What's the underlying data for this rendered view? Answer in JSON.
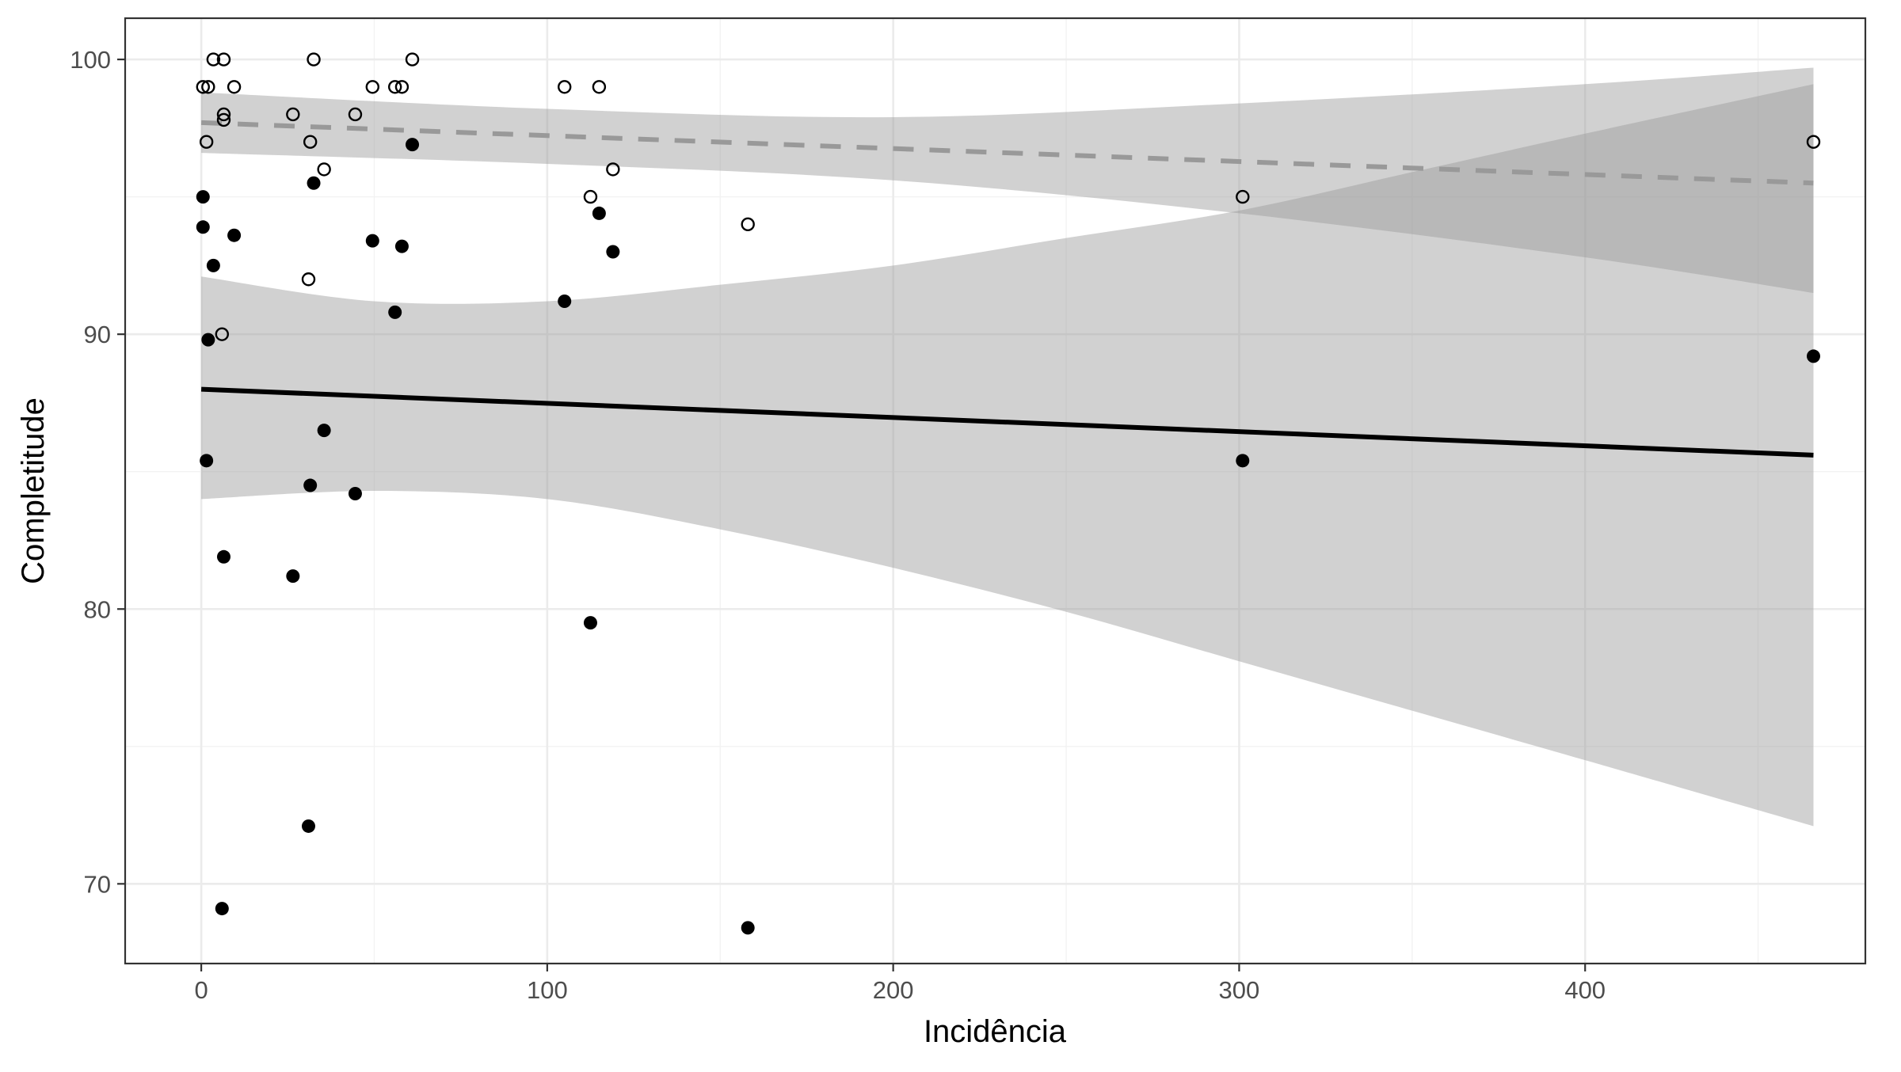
{
  "chart_data": {
    "type": "scatter",
    "title": "",
    "xlabel": "Incidência",
    "ylabel": "Completitude",
    "xlim": [
      -22,
      481
    ],
    "ylim": [
      67.1,
      101.5
    ],
    "x_ticks": [
      0,
      100,
      200,
      300,
      400
    ],
    "x_tick_labels": [
      "0",
      "100",
      "200",
      "300",
      "400"
    ],
    "y_ticks": [
      70,
      80,
      90,
      100
    ],
    "y_tick_labels": [
      "70",
      "80",
      "90",
      "100"
    ],
    "grid": true,
    "legend": "none",
    "colors": {
      "panel_border": "#333333",
      "grid_major": "#ebebeb",
      "grid_minor": "#f2f2f2",
      "ribbon": "#999999",
      "filled_points": "#000000",
      "open_points": "#000000",
      "solid_line": "#000000",
      "dashed_line": "#999999"
    },
    "series": [
      {
        "marker": "filled-circle",
        "fit": "solid",
        "points": [
          {
            "x": 0.5,
            "y": 95.0
          },
          {
            "x": 0.5,
            "y": 93.9
          },
          {
            "x": 1.5,
            "y": 85.4
          },
          {
            "x": 2,
            "y": 89.8
          },
          {
            "x": 3.5,
            "y": 92.5
          },
          {
            "x": 6,
            "y": 69.1
          },
          {
            "x": 6.5,
            "y": 81.9
          },
          {
            "x": 9.5,
            "y": 93.6
          },
          {
            "x": 26.5,
            "y": 81.2
          },
          {
            "x": 31,
            "y": 72.1
          },
          {
            "x": 31.5,
            "y": 84.5
          },
          {
            "x": 32.5,
            "y": 95.5
          },
          {
            "x": 35.5,
            "y": 86.5
          },
          {
            "x": 44.5,
            "y": 84.2
          },
          {
            "x": 49.5,
            "y": 93.4
          },
          {
            "x": 56,
            "y": 90.8
          },
          {
            "x": 58,
            "y": 93.2
          },
          {
            "x": 61,
            "y": 96.9
          },
          {
            "x": 105,
            "y": 91.2
          },
          {
            "x": 112.5,
            "y": 79.5
          },
          {
            "x": 115,
            "y": 94.4
          },
          {
            "x": 119,
            "y": 93.0
          },
          {
            "x": 158,
            "y": 68.4
          },
          {
            "x": 301,
            "y": 85.4
          },
          {
            "x": 466,
            "y": 89.2
          }
        ],
        "fit_line": {
          "x": [
            0,
            466
          ],
          "y": [
            88.0,
            85.6
          ]
        },
        "ci_band": {
          "x": [
            0,
            50,
            100,
            150,
            200,
            250,
            300,
            350,
            400,
            466
          ],
          "lower": [
            84.0,
            84.3,
            84.0,
            82.9,
            81.5,
            79.9,
            78.1,
            76.3,
            74.5,
            72.1
          ],
          "upper": [
            92.1,
            91.2,
            91.2,
            91.8,
            92.5,
            93.5,
            94.5,
            95.9,
            97.3,
            99.1
          ]
        }
      },
      {
        "marker": "open-circle",
        "fit": "dashed",
        "points": [
          {
            "x": 0.5,
            "y": 99.0
          },
          {
            "x": 1.5,
            "y": 97.0
          },
          {
            "x": 2,
            "y": 99.0
          },
          {
            "x": 3.5,
            "y": 100.0
          },
          {
            "x": 6,
            "y": 90.0
          },
          {
            "x": 6.5,
            "y": 100.0
          },
          {
            "x": 6.5,
            "y": 98.0
          },
          {
            "x": 6.5,
            "y": 97.8
          },
          {
            "x": 9.5,
            "y": 99.0
          },
          {
            "x": 26.5,
            "y": 98.0
          },
          {
            "x": 31,
            "y": 92.0
          },
          {
            "x": 31.5,
            "y": 97.0
          },
          {
            "x": 32.5,
            "y": 100.0
          },
          {
            "x": 35.5,
            "y": 96.0
          },
          {
            "x": 44.5,
            "y": 98.0
          },
          {
            "x": 49.5,
            "y": 99.0
          },
          {
            "x": 56,
            "y": 99.0
          },
          {
            "x": 58,
            "y": 99.0
          },
          {
            "x": 61,
            "y": 100.0
          },
          {
            "x": 105,
            "y": 99.0
          },
          {
            "x": 112.5,
            "y": 95.0
          },
          {
            "x": 115,
            "y": 99.0
          },
          {
            "x": 119,
            "y": 96.0
          },
          {
            "x": 158,
            "y": 94.0
          },
          {
            "x": 301,
            "y": 95.0
          },
          {
            "x": 466,
            "y": 97.0
          }
        ],
        "fit_line": {
          "x": [
            0,
            466
          ],
          "y": [
            97.7,
            95.5
          ]
        },
        "ci_band": {
          "x": [
            0,
            100,
            200,
            300,
            400,
            466
          ],
          "lower": [
            96.6,
            96.2,
            95.6,
            94.4,
            92.8,
            91.5
          ],
          "upper": [
            98.8,
            98.2,
            97.9,
            98.4,
            99.1,
            99.7
          ]
        }
      }
    ]
  }
}
